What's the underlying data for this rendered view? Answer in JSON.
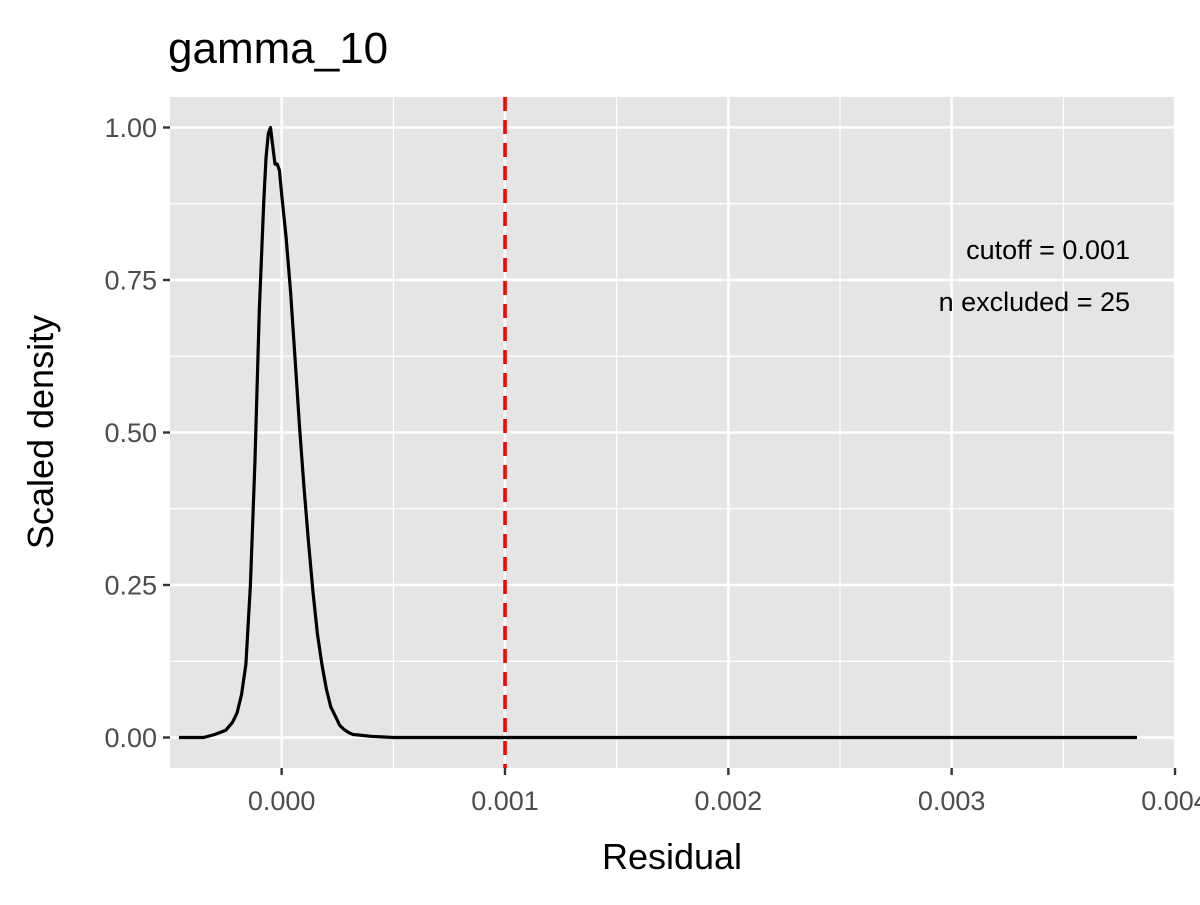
{
  "chart_data": {
    "type": "line",
    "title": "gamma_10",
    "xlabel": "Residual",
    "ylabel": "Scaled density",
    "xlim": [
      -0.0005,
      0.004
    ],
    "ylim": [
      -0.05,
      1.05
    ],
    "x_ticks": [
      0.0,
      0.001,
      0.002,
      0.003,
      0.004
    ],
    "x_tick_labels": [
      "0.000",
      "0.001",
      "0.002",
      "0.003",
      "0.004"
    ],
    "y_ticks": [
      0.0,
      0.25,
      0.5,
      0.75,
      1.0
    ],
    "y_tick_labels": [
      "0.00",
      "0.25",
      "0.50",
      "0.75",
      "1.00"
    ],
    "grid": true,
    "cutoff_line": {
      "x": 0.001,
      "color": "#ff0000",
      "style": "dashed"
    },
    "annotations": [
      "cutoff = 0.001",
      "n excluded = 25"
    ],
    "series": [
      {
        "color": "#000000",
        "x": [
          -0.00046,
          -0.00035,
          -0.0003,
          -0.00025,
          -0.00022,
          -0.0002,
          -0.00018,
          -0.00016,
          -0.00014,
          -0.00012,
          -0.0001,
          -8e-05,
          -7e-05,
          -6e-05,
          -5e-05,
          -4e-05,
          -3e-05,
          -2e-05,
          -1e-05,
          0.0,
          2e-05,
          4e-05,
          6e-05,
          8e-05,
          0.0001,
          0.00012,
          0.00014,
          0.00016,
          0.00018,
          0.0002,
          0.00022,
          0.00024,
          0.00026,
          0.00028,
          0.0003,
          0.00032,
          0.00035,
          0.0004,
          0.00045,
          0.0005,
          0.0006,
          0.0008,
          0.001,
          0.0015,
          0.002,
          0.0025,
          0.003,
          0.0035,
          0.00383
        ],
        "y": [
          0.0,
          0.0,
          0.005,
          0.012,
          0.025,
          0.04,
          0.07,
          0.12,
          0.25,
          0.45,
          0.7,
          0.88,
          0.95,
          0.99,
          1.0,
          0.97,
          0.94,
          0.94,
          0.93,
          0.89,
          0.82,
          0.73,
          0.62,
          0.51,
          0.41,
          0.32,
          0.24,
          0.17,
          0.12,
          0.08,
          0.05,
          0.035,
          0.02,
          0.013,
          0.008,
          0.005,
          0.004,
          0.002,
          0.001,
          0.0,
          0.0,
          0.0,
          0.0,
          0.0,
          0.0,
          0.0,
          0.0,
          0.0,
          0.0
        ]
      }
    ]
  }
}
